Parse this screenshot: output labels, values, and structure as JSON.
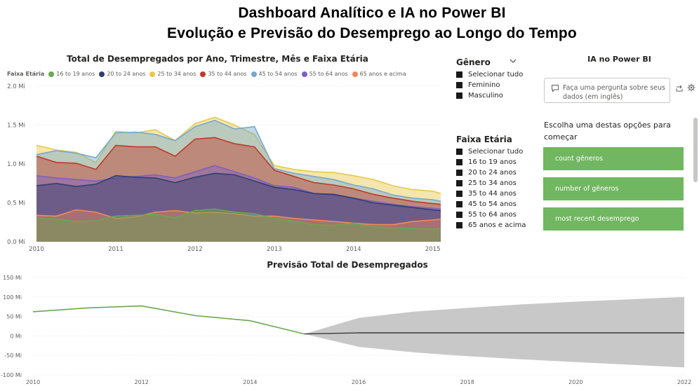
{
  "header": {
    "line1": "Dashboard Analítico e IA no Power BI",
    "line2": "Evolução e Previsão do Desemprego ao Longo do Tempo"
  },
  "area_chart": {
    "title": "Total de Desempregados por Ano, Trimestre, Mês e Faixa Etária",
    "legend_label": "Faixa Etária"
  },
  "forecast_chart": {
    "title": "Previsão Total de Desempregados"
  },
  "slicer_genero": {
    "title": "Gênero",
    "items": [
      "Selecionar tudo",
      "Feminino",
      "Masculino"
    ]
  },
  "slicer_faixa": {
    "title": "Faixa Etária",
    "items": [
      "Selecionar tudo",
      "16 to 19 anos",
      "20 to 24 anos",
      "25 to 34 anos",
      "35 to 44 anos",
      "45 to 54 anos",
      "55 to 64 anos",
      "65 anos e acima"
    ]
  },
  "qa": {
    "title": "IA no Power BI",
    "placeholder": "Faça uma pergunta sobre seus dados (em inglês)",
    "prompt": "Escolha uma destas opções para começar",
    "suggestions": [
      "count gêneros",
      "number of gêneros",
      "most recent desemprego"
    ]
  },
  "colors": {
    "series_16_19": "#6aa84f",
    "series_20_24": "#2f3e73",
    "series_25_34": "#e8c84a",
    "series_35_44": "#c0392b",
    "series_45_54": "#74a9cf",
    "series_55_64": "#7d5fc0",
    "series_65": "#ee8a5a",
    "qa_button": "#71b660",
    "forecast_band": "#c8c8c8"
  },
  "icons": [
    "chevron-down-icon",
    "chat-bubble-icon",
    "share-icon",
    "gear-icon"
  ],
  "chart_data": [
    {
      "type": "area",
      "title": "Total de Desempregados por Ano, Trimestre, Mês e Faixa Etária",
      "legend_title": "Faixa Etária",
      "x_ticks": [
        "2010",
        "2011",
        "2012",
        "2013",
        "2014",
        "2015"
      ],
      "y_ticks": [
        "0.0 Mi",
        "0.5 Mi",
        "1.0 Mi",
        "1.5 Mi",
        "2.0 Mi"
      ],
      "ylim": [
        0,
        2.0
      ],
      "x": [
        2010.0,
        2010.25,
        2010.5,
        2010.75,
        2011.0,
        2011.25,
        2011.5,
        2011.75,
        2012.0,
        2012.25,
        2012.5,
        2012.75,
        2013.0,
        2013.25,
        2013.5,
        2013.75,
        2014.0,
        2014.25,
        2014.5,
        2014.75,
        2015.0,
        2015.1
      ],
      "series": [
        {
          "name": "16 to 19 anos",
          "values": [
            0.31,
            0.29,
            0.26,
            0.27,
            0.33,
            0.34,
            0.35,
            0.31,
            0.4,
            0.42,
            0.38,
            0.36,
            0.3,
            0.26,
            0.22,
            0.21,
            0.24,
            0.19,
            0.18,
            0.17,
            0.16,
            0.17
          ]
        },
        {
          "name": "20 to 24 anos",
          "values": [
            0.72,
            0.75,
            0.71,
            0.74,
            0.85,
            0.83,
            0.82,
            0.76,
            0.83,
            0.88,
            0.86,
            0.78,
            0.7,
            0.67,
            0.62,
            0.61,
            0.56,
            0.5,
            0.47,
            0.44,
            0.41,
            0.4
          ]
        },
        {
          "name": "25 to 34 anos",
          "values": [
            1.24,
            1.18,
            1.15,
            1.02,
            1.42,
            1.4,
            1.44,
            1.3,
            1.52,
            1.6,
            1.5,
            1.38,
            0.98,
            0.93,
            0.9,
            0.89,
            0.85,
            0.8,
            0.72,
            0.67,
            0.65,
            0.62
          ]
        },
        {
          "name": "35 to 44 anos",
          "values": [
            1.1,
            1.02,
            1.01,
            0.93,
            1.24,
            1.22,
            1.22,
            1.1,
            1.32,
            1.34,
            1.26,
            1.22,
            0.92,
            0.84,
            0.76,
            0.73,
            0.68,
            0.61,
            0.56,
            0.52,
            0.49,
            0.48
          ]
        },
        {
          "name": "45 to 54 anos",
          "values": [
            1.12,
            1.17,
            1.14,
            1.08,
            1.4,
            1.41,
            1.38,
            1.3,
            1.48,
            1.56,
            1.45,
            1.48,
            0.94,
            0.88,
            0.84,
            0.8,
            0.73,
            0.68,
            0.6,
            0.56,
            0.54,
            0.52
          ]
        },
        {
          "name": "55 to 64 anos",
          "values": [
            0.85,
            0.82,
            0.8,
            0.78,
            0.82,
            0.84,
            0.86,
            0.82,
            0.9,
            0.98,
            0.9,
            0.82,
            0.72,
            0.7,
            0.62,
            0.6,
            0.56,
            0.52,
            0.48,
            0.45,
            0.43,
            0.42
          ]
        },
        {
          "name": "65 anos e acima",
          "values": [
            0.34,
            0.33,
            0.41,
            0.38,
            0.3,
            0.32,
            0.38,
            0.4,
            0.37,
            0.38,
            0.36,
            0.33,
            0.33,
            0.3,
            0.28,
            0.26,
            0.24,
            0.22,
            0.22,
            0.26,
            0.28,
            0.29
          ]
        }
      ]
    },
    {
      "type": "line",
      "title": "Previsão Total de Desempregados",
      "x_ticks": [
        "2010",
        "2012",
        "2014",
        "2016",
        "2018",
        "2020",
        "2022"
      ],
      "y_ticks": [
        "-100 Mi",
        "-50 Mi",
        "0 Mi",
        "50 Mi",
        "100 Mi",
        "150 Mi"
      ],
      "ylim": [
        -100,
        150
      ],
      "xlim": [
        2010,
        2022
      ],
      "actual": {
        "x": [
          2010,
          2011,
          2012,
          2013,
          2014,
          2015
        ],
        "values": [
          62,
          72,
          77,
          52,
          39,
          5
        ]
      },
      "forecast": {
        "x": [
          2015,
          2016,
          2017,
          2018,
          2019,
          2020,
          2021,
          2022
        ],
        "values": [
          5,
          8,
          8,
          8,
          8,
          8,
          8,
          8
        ],
        "upper": [
          5,
          46,
          62,
          72,
          81,
          88,
          94,
          100
        ],
        "lower": [
          5,
          -28,
          -42,
          -52,
          -60,
          -67,
          -74,
          -81
        ]
      }
    }
  ]
}
